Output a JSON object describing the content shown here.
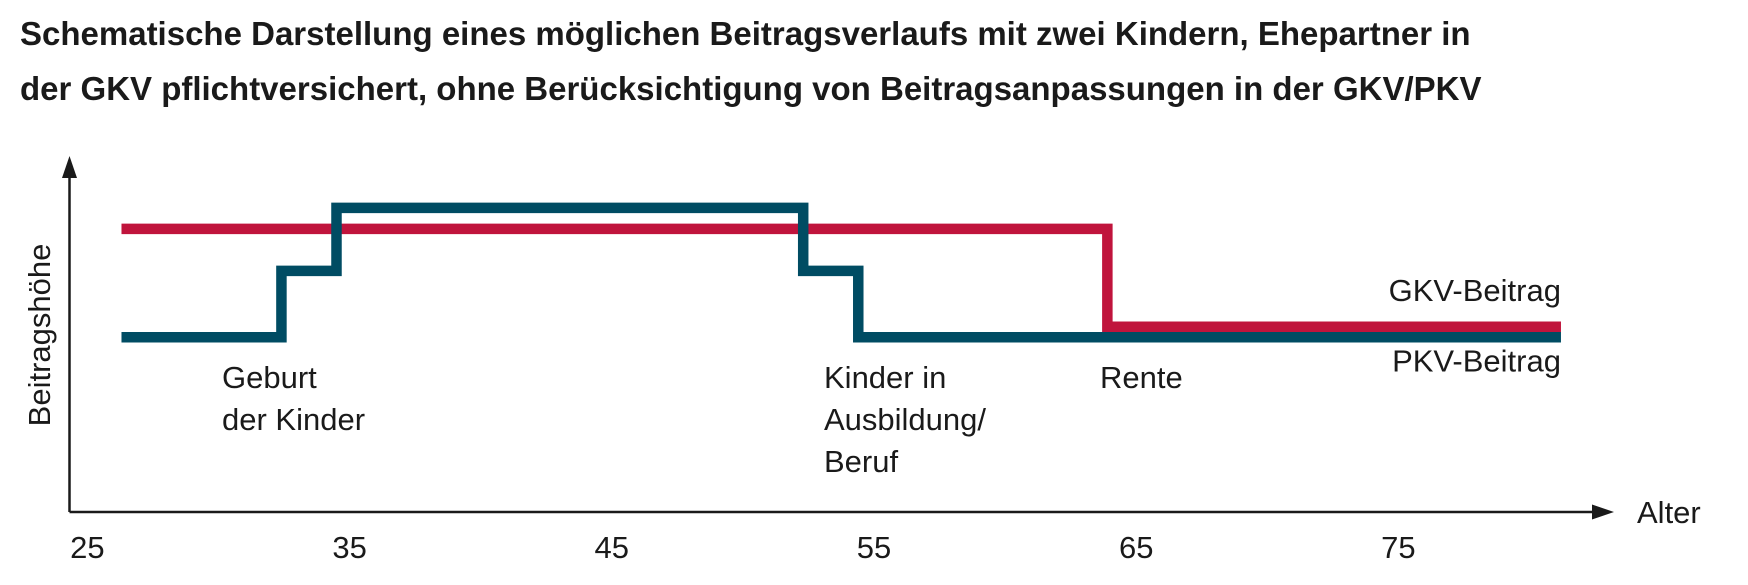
{
  "chart_data": {
    "type": "line",
    "step": true,
    "title": [
      "Schematische Darstellung eines möglichen Beitragsverlaufs mit zwei Kindern, Ehepartner in",
      "der GKV pflichtversichert, ohne Berücksichtigung von Beitragsanpassungen in der GKV/PKV"
    ],
    "x_label": "Alter",
    "y_label": "Beitragshöhe",
    "xlim": [
      24.3,
      83.2
    ],
    "xticks": [
      25,
      35,
      45,
      55,
      65,
      75
    ],
    "ylim": [
      0,
      10
    ],
    "series": [
      {
        "name": "GKV-Beitrag",
        "color": "#c0143c",
        "x": [
          26.3,
          63.9,
          63.9,
          81.2
        ],
        "values": [
          8.1,
          8.1,
          5.3,
          5.3
        ]
      },
      {
        "name": "PKV-Beitrag",
        "color": "#004c63",
        "x": [
          26.3,
          32.4,
          32.4,
          34.5,
          34.5,
          52.3,
          52.3,
          54.4,
          54.4,
          81.2
        ],
        "values": [
          5,
          5,
          6.9,
          6.9,
          8.7,
          8.7,
          6.9,
          6.9,
          5,
          5
        ]
      }
    ],
    "annotations": [
      [
        "Geburt",
        "der Kinder"
      ],
      [
        "Kinder in",
        "Ausbildung/",
        "Beruf"
      ],
      [
        "Rente"
      ]
    ]
  }
}
